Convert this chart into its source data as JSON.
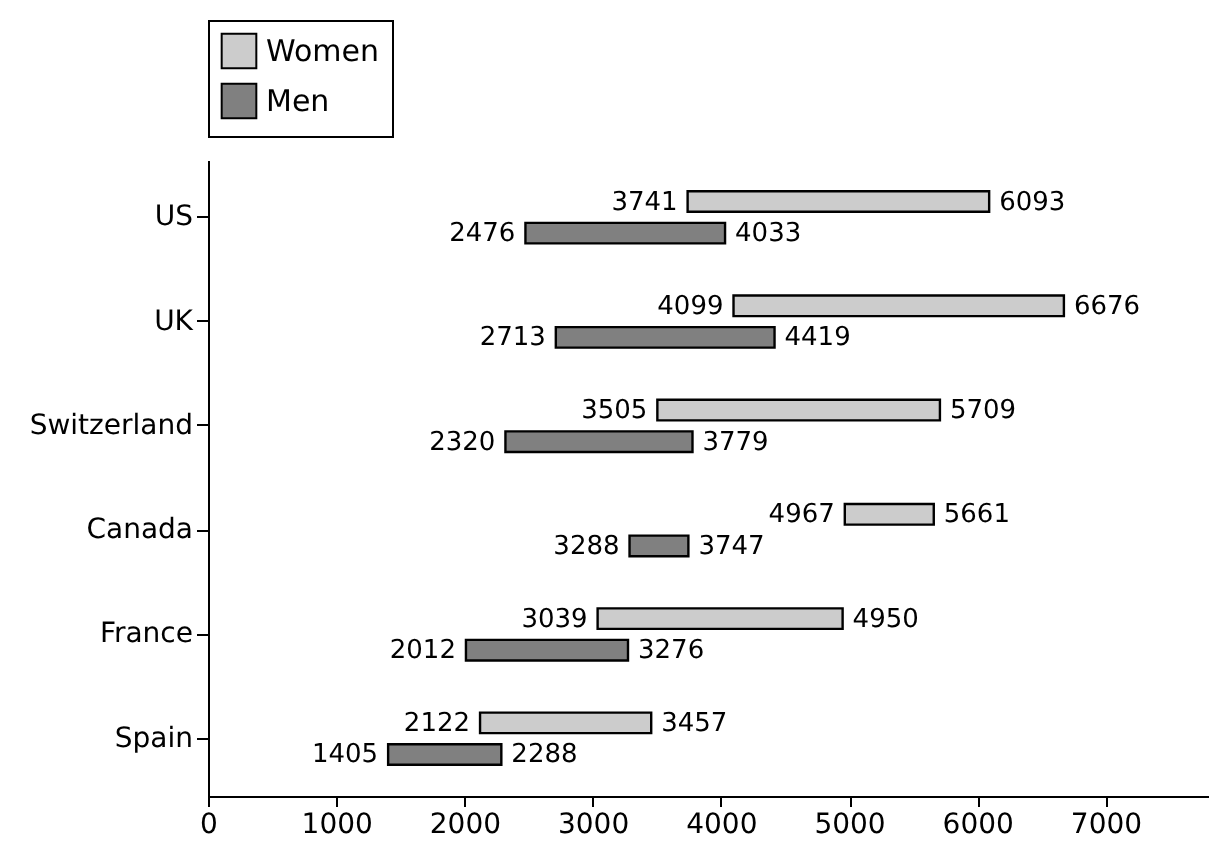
{
  "chart_data": {
    "type": "bar",
    "orientation": "horizontal",
    "categories": [
      "US",
      "UK",
      "Switzerland",
      "Canada",
      "France",
      "Spain"
    ],
    "series": [
      {
        "name": "Women",
        "color": "#cccccc",
        "base": [
          3741,
          4099,
          3505,
          4967,
          3039,
          2122
        ],
        "values": [
          2352,
          2577,
          2204,
          694,
          1911,
          1335
        ]
      },
      {
        "name": "Men",
        "color": "#808080",
        "base": [
          2476,
          2713,
          2320,
          3288,
          2012,
          1405
        ],
        "values": [
          1557,
          1706,
          1459,
          459,
          1264,
          883
        ]
      }
    ],
    "xlim": [
      0,
      7800
    ],
    "xticks": [
      0,
      1000,
      2000,
      3000,
      4000,
      5000,
      6000,
      7000
    ],
    "legend": "top left",
    "grid": false,
    "annotations": [
      {
        "text": "3741",
        "x": 3741,
        "y": "US"
      },
      {
        "text": "6093",
        "x": 6093,
        "y": "US"
      },
      {
        "text": "2476",
        "x": 2476,
        "y": "US"
      },
      {
        "text": "4033",
        "x": 4033,
        "y": "US"
      },
      {
        "text": "4099",
        "x": 4099,
        "y": "UK"
      },
      {
        "text": "6676",
        "x": 6676,
        "y": "UK"
      },
      {
        "text": "2713",
        "x": 2713,
        "y": "UK"
      },
      {
        "text": "4419",
        "x": 4419,
        "y": "UK"
      },
      {
        "text": "3505",
        "x": 3505,
        "y": "Switzerland"
      },
      {
        "text": "5709",
        "x": 5709,
        "y": "Switzerland"
      },
      {
        "text": "2320",
        "x": 2320,
        "y": "Switzerland"
      },
      {
        "text": "3779",
        "x": 3779,
        "y": "Switzerland"
      },
      {
        "text": "4967",
        "x": 4967,
        "y": "Canada"
      },
      {
        "text": "5661",
        "x": 5661,
        "y": "Canada"
      },
      {
        "text": "3288",
        "x": 3288,
        "y": "Canada"
      },
      {
        "text": "3747",
        "x": 3747,
        "y": "Canada"
      },
      {
        "text": "3039",
        "x": 3039,
        "y": "France"
      },
      {
        "text": "4950",
        "x": 4950,
        "y": "France"
      },
      {
        "text": "2012",
        "x": 2012,
        "y": "France"
      },
      {
        "text": "3276",
        "x": 3276,
        "y": "France"
      },
      {
        "text": "2122",
        "x": 2122,
        "y": "Spain"
      },
      {
        "text": "3457",
        "x": 3457,
        "y": "Spain"
      },
      {
        "text": "1405",
        "x": 1405,
        "y": "Spain"
      },
      {
        "text": "2288",
        "x": 2288,
        "y": "Spain"
      }
    ]
  }
}
